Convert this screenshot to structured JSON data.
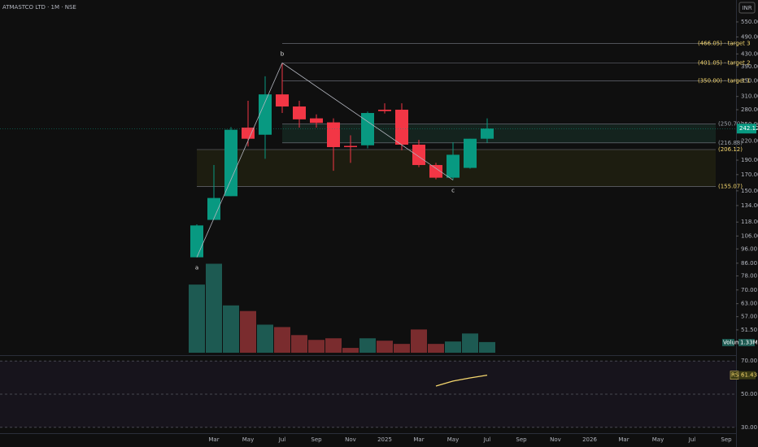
{
  "chart_data": {
    "type": "candlestick",
    "title": "ATMASTCO LTD · 1M · NSE",
    "currency": "INR",
    "log_scale": true,
    "up_color": "#089981",
    "down_color": "#f23645",
    "categories": [
      null,
      "Mar",
      null,
      "May",
      null,
      "Jul",
      null,
      "Sep",
      null,
      "Nov",
      null,
      "2025",
      null,
      "Mar",
      null,
      "May",
      null,
      "Jul",
      null,
      "Sep",
      null,
      "Nov",
      null,
      "2026",
      null,
      "Mar",
      null,
      "May",
      null,
      "Jul",
      null,
      "Sep"
    ],
    "open": [
      90,
      120,
      144,
      244,
      231,
      315,
      287,
      262,
      254,
      212,
      213,
      280,
      280,
      214,
      183,
      166,
      179,
      224,
      null,
      null,
      null,
      null,
      null,
      null,
      null,
      null,
      null,
      null,
      null,
      null,
      null,
      null
    ],
    "high": [
      116,
      183,
      245,
      300,
      362,
      401,
      300,
      270,
      262,
      230,
      276,
      294,
      294,
      222,
      186,
      218,
      224,
      262,
      null,
      null,
      null,
      null,
      null,
      null,
      null,
      null,
      null,
      null,
      null,
      null,
      null,
      null
    ],
    "low": [
      90,
      120,
      144,
      211,
      192,
      273,
      244,
      244,
      175,
      186,
      208,
      272,
      205,
      180,
      164,
      163,
      178,
      217,
      null,
      null,
      null,
      null,
      null,
      null,
      null,
      null,
      null,
      null,
      null,
      null,
      null,
      null
    ],
    "close": [
      115,
      142,
      240,
      224,
      315,
      287,
      260,
      253,
      210,
      210,
      273,
      277,
      214,
      183,
      166,
      198,
      224,
      242.12,
      null,
      null,
      null,
      null,
      null,
      null,
      null,
      null,
      null,
      null,
      null,
      null,
      null,
      null
    ],
    "ylim": [
      42.4,
      651
    ],
    "yticks": [
      {
        "value": 550,
        "label": "550.00"
      },
      {
        "value": 490,
        "label": "490.00"
      },
      {
        "value": 430,
        "label": "430.00"
      },
      {
        "value": 390,
        "label": "390.00"
      },
      {
        "value": 350,
        "label": "350.00"
      },
      {
        "value": 310,
        "label": "310.00"
      },
      {
        "value": 280,
        "label": "280.00"
      },
      {
        "value": 250,
        "label": "250.00"
      },
      {
        "value": 220,
        "label": "220.00"
      },
      {
        "value": 190,
        "label": "190.00"
      },
      {
        "value": 170,
        "label": "170.00"
      },
      {
        "value": 150,
        "label": "150.00"
      },
      {
        "value": 134,
        "label": "134.00"
      },
      {
        "value": 118,
        "label": "118.00"
      },
      {
        "value": 106,
        "label": "106.00"
      },
      {
        "value": 96,
        "label": "96.00"
      },
      {
        "value": 86,
        "label": "86.00"
      },
      {
        "value": 78,
        "label": "78.00"
      },
      {
        "value": 70,
        "label": "70.00"
      },
      {
        "value": 63,
        "label": "63.00"
      },
      {
        "value": 57,
        "label": "57.00"
      },
      {
        "value": 51.5,
        "label": "51.50"
      }
    ],
    "targets": [
      {
        "value": 466.05,
        "label": "(466.05) · target 3"
      },
      {
        "value": 401.05,
        "label": "(401.05) · target 2"
      },
      {
        "value": 350.0,
        "label": "(350.00) · target 1"
      }
    ],
    "zones": [
      {
        "color": "#1f4a3c",
        "label_color": "#9aa0a8",
        "top": {
          "value": 250.7,
          "label": "(250.70)"
        },
        "bottom": {
          "value": 216.88,
          "label": "(216.88)"
        }
      },
      {
        "color": "#3a3a14",
        "label_color": "#f5d76e",
        "top": {
          "value": 206.12,
          "label": "(206.12)"
        },
        "bottom": {
          "value": 155.07,
          "label": "(155.07)"
        }
      }
    ],
    "waves": [
      {
        "label": "a",
        "value": 90
      },
      {
        "label": "b",
        "value": 401
      },
      {
        "label": "c",
        "value": 163
      }
    ],
    "volume": {
      "name": "Volume",
      "ylim": [
        0,
        44
      ],
      "up_color": "#1d5a52",
      "down_color": "#7a2c2e",
      "values": [
        8.5,
        11.1,
        5.9,
        5.2,
        3.5,
        3.2,
        2.2,
        1.6,
        1.8,
        0.6,
        1.8,
        1.5,
        1.1,
        2.9,
        1.1,
        1.4,
        2.4,
        1.33,
        null,
        null,
        null,
        null,
        null,
        null,
        null,
        null,
        null,
        null,
        null,
        null,
        null,
        null
      ],
      "value_labels": [
        null,
        null,
        null,
        null,
        null,
        null,
        null,
        null,
        null,
        null,
        null,
        null,
        null,
        null,
        null,
        null,
        null,
        "1.33M",
        null,
        null,
        null,
        null,
        null,
        null,
        null,
        null,
        null,
        null,
        null,
        null,
        null,
        null
      ]
    },
    "rsi": {
      "name": "RSI",
      "color": "#f5d76e",
      "ylim": [
        27,
        73
      ],
      "yticks": [
        {
          "value": 70,
          "label": "70.00"
        },
        {
          "value": 50,
          "label": "50.00"
        },
        {
          "value": 30,
          "label": "30.00"
        }
      ],
      "values": [
        null,
        null,
        null,
        null,
        null,
        null,
        null,
        null,
        null,
        null,
        null,
        null,
        null,
        null,
        54.9,
        57.9,
        59.8,
        61.43,
        null,
        null,
        null,
        null,
        null,
        null,
        null,
        null,
        null,
        null,
        null,
        null,
        null,
        null
      ]
    }
  }
}
